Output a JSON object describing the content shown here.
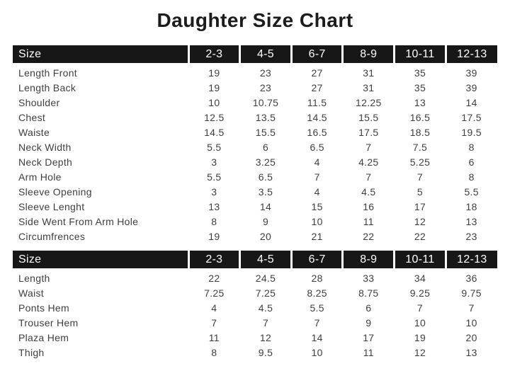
{
  "page": {
    "title": "Daughter Size Chart"
  },
  "colors": {
    "header_bg": "#171717",
    "header_text": "#ffffff",
    "body_text": "#3f3f3f",
    "title_text": "#1c1c1c"
  },
  "tables": [
    {
      "name": "shirt-size-table",
      "header": {
        "label": "Size",
        "sizes": [
          "2-3",
          "4-5",
          "6-7",
          "8-9",
          "10-11",
          "12-13"
        ]
      },
      "rows": [
        {
          "label": "Length Front",
          "values": [
            "19",
            "23",
            "27",
            "31",
            "35",
            "39"
          ]
        },
        {
          "label": "Length Back",
          "values": [
            "19",
            "23",
            "27",
            "31",
            "35",
            "39"
          ]
        },
        {
          "label": "Shoulder",
          "values": [
            "10",
            "10.75",
            "11.5",
            "12.25",
            "13",
            "14"
          ]
        },
        {
          "label": "Chest",
          "values": [
            "12.5",
            "13.5",
            "14.5",
            "15.5",
            "16.5",
            "17.5"
          ]
        },
        {
          "label": "Waiste",
          "values": [
            "14.5",
            "15.5",
            "16.5",
            "17.5",
            "18.5",
            "19.5"
          ]
        },
        {
          "label": "Neck Width",
          "values": [
            "5.5",
            "6",
            "6.5",
            "7",
            "7.5",
            "8"
          ]
        },
        {
          "label": "Neck Depth",
          "values": [
            "3",
            "3.25",
            "4",
            "4.25",
            "5.25",
            "6"
          ]
        },
        {
          "label": "Arm Hole",
          "values": [
            "5.5",
            "6.5",
            "7",
            "7",
            "7",
            "8"
          ]
        },
        {
          "label": "Sleeve Opening",
          "values": [
            "3",
            "3.5",
            "4",
            "4.5",
            "5",
            "5.5"
          ]
        },
        {
          "label": "Sleeve Lenght",
          "values": [
            "13",
            "14",
            "15",
            "16",
            "17",
            "18"
          ]
        },
        {
          "label": "Side Went From Arm Hole",
          "values": [
            "8",
            "9",
            "10",
            "11",
            "12",
            "13"
          ]
        },
        {
          "label": "Circumfrences",
          "values": [
            "19",
            "20",
            "21",
            "22",
            "22",
            "23"
          ]
        }
      ]
    },
    {
      "name": "trouser-size-table",
      "header": {
        "label": "Size",
        "sizes": [
          "2-3",
          "4-5",
          "6-7",
          "8-9",
          "10-11",
          "12-13"
        ]
      },
      "rows": [
        {
          "label": "Length",
          "values": [
            "22",
            "24.5",
            "28",
            "33",
            "34",
            "36"
          ]
        },
        {
          "label": "Waist",
          "values": [
            "7.25",
            "7.25",
            "8.25",
            "8.75",
            "9.25",
            "9.75"
          ]
        },
        {
          "label": "Ponts Hem",
          "values": [
            "4",
            "4.5",
            "5.5",
            "6",
            "7",
            "7"
          ]
        },
        {
          "label": "Trouser Hem",
          "values": [
            "7",
            "7",
            "7",
            "9",
            "10",
            "10"
          ]
        },
        {
          "label": "Plaza Hem",
          "values": [
            "11",
            "12",
            "14",
            "17",
            "19",
            "20"
          ]
        },
        {
          "label": "Thigh",
          "values": [
            "8",
            "9.5",
            "10",
            "11",
            "12",
            "13"
          ]
        }
      ]
    }
  ]
}
